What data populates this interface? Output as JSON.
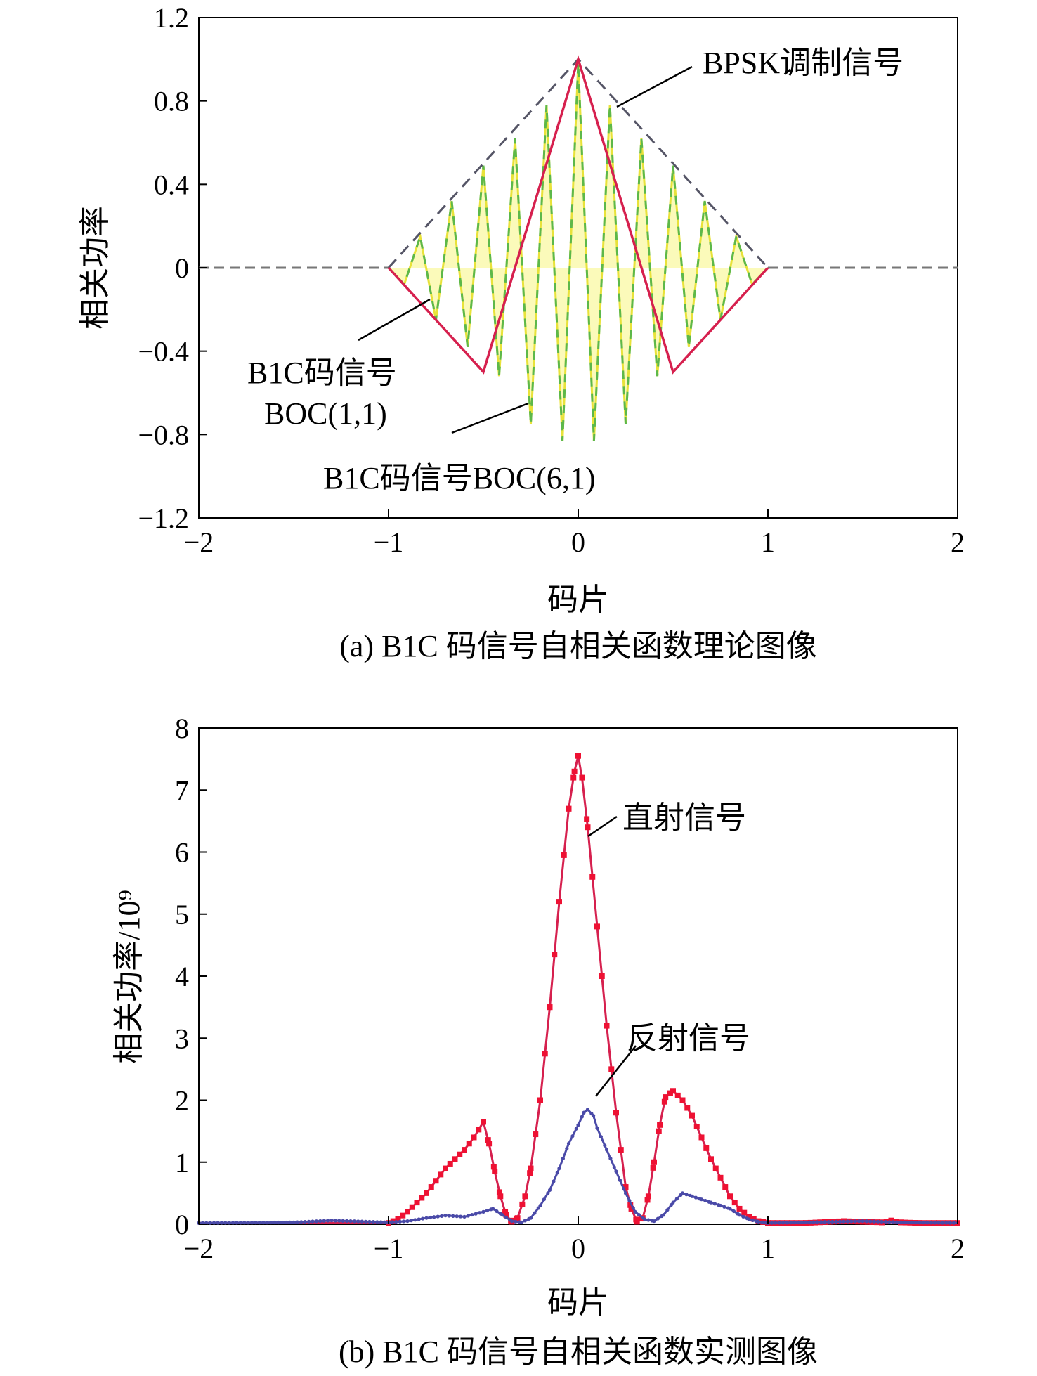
{
  "chart_data": [
    {
      "type": "line",
      "caption": "(a) B1C 码信号自相关函数理论图像",
      "xlabel": "码片",
      "ylabel": "相关功率",
      "xlim": [
        -2,
        2
      ],
      "ylim": [
        -1.2,
        1.2
      ],
      "xticks": [
        -2,
        -1,
        0,
        1,
        2
      ],
      "xtick_labels": [
        "−2",
        "−1",
        "0",
        "1",
        "2"
      ],
      "yticks": [
        1.2,
        0.8,
        0.4,
        0,
        -0.4,
        -0.8,
        -1.2
      ],
      "ytick_labels": [
        "1.2",
        "0.8",
        "0.4",
        "0",
        "−0.4",
        "−0.8",
        "−1.2"
      ],
      "grid": false,
      "series": [
        {
          "name": "BPSK调制信号",
          "color": "#555566",
          "style": "dashed",
          "x": [
            -2,
            -1,
            0,
            1,
            2
          ],
          "y": [
            0,
            0,
            1,
            0,
            0
          ]
        },
        {
          "name": "B1C码信号 BOC(1,1)",
          "color": "#d6204e",
          "style": "solid",
          "x": [
            -2,
            -1,
            -0.5,
            0,
            0.5,
            1,
            2
          ],
          "y": [
            0,
            0,
            -0.5,
            1,
            -0.5,
            0,
            0
          ]
        },
        {
          "name": "B1C码信号BOC(6,1)",
          "color": "#5db84a",
          "fill_color": "#f4f03a",
          "style": "dashed",
          "x": [
            -2,
            -1,
            -0.917,
            -0.833,
            -0.75,
            -0.667,
            -0.583,
            -0.5,
            -0.417,
            -0.333,
            -0.25,
            -0.167,
            -0.083,
            0,
            0.083,
            0.167,
            0.25,
            0.333,
            0.417,
            0.5,
            0.583,
            0.667,
            0.75,
            0.833,
            0.917,
            1,
            2
          ],
          "y": [
            0,
            0,
            -0.08,
            0.15,
            -0.25,
            0.32,
            -0.38,
            0.49,
            -0.52,
            0.62,
            -0.75,
            0.78,
            -0.83,
            0.98,
            -0.83,
            0.78,
            -0.75,
            0.62,
            -0.52,
            0.49,
            -0.38,
            0.32,
            -0.25,
            0.15,
            -0.08,
            0,
            0
          ]
        }
      ],
      "annotations": [
        {
          "text": "BPSK调制信号",
          "x": 1.6,
          "y": 1.0
        },
        {
          "text": "B1C码信号",
          "x": -1.28,
          "y": -0.5
        },
        {
          "text": "BOC(1,1)",
          "x": -1.28,
          "y": -0.72
        },
        {
          "text": "B1C码信号BOC(6,1)",
          "x": -0.49,
          "y": -1.0
        }
      ]
    },
    {
      "type": "line",
      "caption": "(b) B1C 码信号自相关函数实测图像",
      "xlabel": "码片",
      "ylabel": "相关功率/10⁹",
      "xlim": [
        -2,
        2
      ],
      "ylim": [
        0,
        8
      ],
      "xticks": [
        -2,
        -1,
        0,
        1,
        2
      ],
      "xtick_labels": [
        "−2",
        "−1",
        "0",
        "1",
        "2"
      ],
      "yticks": [
        8,
        7,
        6,
        5,
        4,
        3,
        2,
        1,
        0
      ],
      "ytick_labels": [
        "8",
        "7",
        "6",
        "5",
        "4",
        "3",
        "2",
        "1",
        "0"
      ],
      "grid": false,
      "series": [
        {
          "name": "直射信号",
          "color": "#d6204e",
          "marker_color": "#ee1133",
          "marker": "square",
          "x": [
            -2.0,
            -1.0,
            -0.95,
            -0.9,
            -0.85,
            -0.8,
            -0.75,
            -0.7,
            -0.65,
            -0.6,
            -0.55,
            -0.5,
            -0.47,
            -0.44,
            -0.41,
            -0.38,
            -0.35,
            -0.32,
            -0.28,
            -0.25,
            -0.2,
            -0.15,
            -0.1,
            -0.05,
            -0.02,
            0.0,
            0.02,
            0.05,
            0.1,
            0.15,
            0.2,
            0.25,
            0.28,
            0.31,
            0.34,
            0.37,
            0.4,
            0.43,
            0.46,
            0.5,
            0.55,
            0.6,
            0.65,
            0.7,
            0.75,
            0.8,
            0.85,
            0.9,
            0.95,
            1.0,
            1.2,
            1.4,
            1.6,
            1.65,
            1.7,
            1.8,
            2.0
          ],
          "y": [
            0.02,
            0.02,
            0.08,
            0.2,
            0.35,
            0.5,
            0.7,
            0.9,
            1.05,
            1.2,
            1.4,
            1.65,
            1.3,
            0.85,
            0.45,
            0.15,
            0.04,
            0.1,
            0.45,
            0.9,
            2.0,
            3.5,
            5.2,
            6.7,
            7.3,
            7.55,
            7.2,
            6.4,
            4.8,
            3.2,
            1.8,
            0.6,
            0.25,
            0.04,
            0.1,
            0.45,
            1.0,
            1.6,
            2.05,
            2.15,
            2.0,
            1.75,
            1.4,
            1.05,
            0.75,
            0.45,
            0.25,
            0.12,
            0.05,
            0.02,
            0.02,
            0.05,
            0.03,
            0.06,
            0.03,
            0.02,
            0.02
          ]
        },
        {
          "name": "反射信号",
          "color": "#4a4aa8",
          "marker": "dot",
          "x": [
            -2.0,
            -1.5,
            -1.3,
            -1.2,
            -1.0,
            -0.9,
            -0.8,
            -0.7,
            -0.6,
            -0.5,
            -0.45,
            -0.4,
            -0.35,
            -0.3,
            -0.25,
            -0.2,
            -0.15,
            -0.1,
            -0.05,
            0.0,
            0.03,
            0.05,
            0.08,
            0.1,
            0.15,
            0.2,
            0.25,
            0.3,
            0.35,
            0.4,
            0.45,
            0.5,
            0.55,
            0.6,
            0.65,
            0.7,
            0.75,
            0.8,
            0.85,
            0.9,
            0.95,
            1.0,
            1.2,
            1.5,
            1.7,
            2.0
          ],
          "y": [
            0.02,
            0.03,
            0.06,
            0.05,
            0.03,
            0.05,
            0.1,
            0.14,
            0.12,
            0.2,
            0.25,
            0.15,
            0.05,
            0.03,
            0.1,
            0.3,
            0.55,
            0.9,
            1.3,
            1.6,
            1.8,
            1.85,
            1.75,
            1.55,
            1.2,
            0.85,
            0.5,
            0.2,
            0.08,
            0.05,
            0.15,
            0.35,
            0.5,
            0.45,
            0.4,
            0.35,
            0.3,
            0.25,
            0.15,
            0.08,
            0.04,
            0.02,
            0.03,
            0.05,
            0.03,
            0.02
          ]
        }
      ],
      "annotations": [
        {
          "text": "直射信号",
          "x": 0.6,
          "y": 6.5
        },
        {
          "text": "反射信号",
          "x": 0.63,
          "y": 3.0
        }
      ]
    }
  ]
}
